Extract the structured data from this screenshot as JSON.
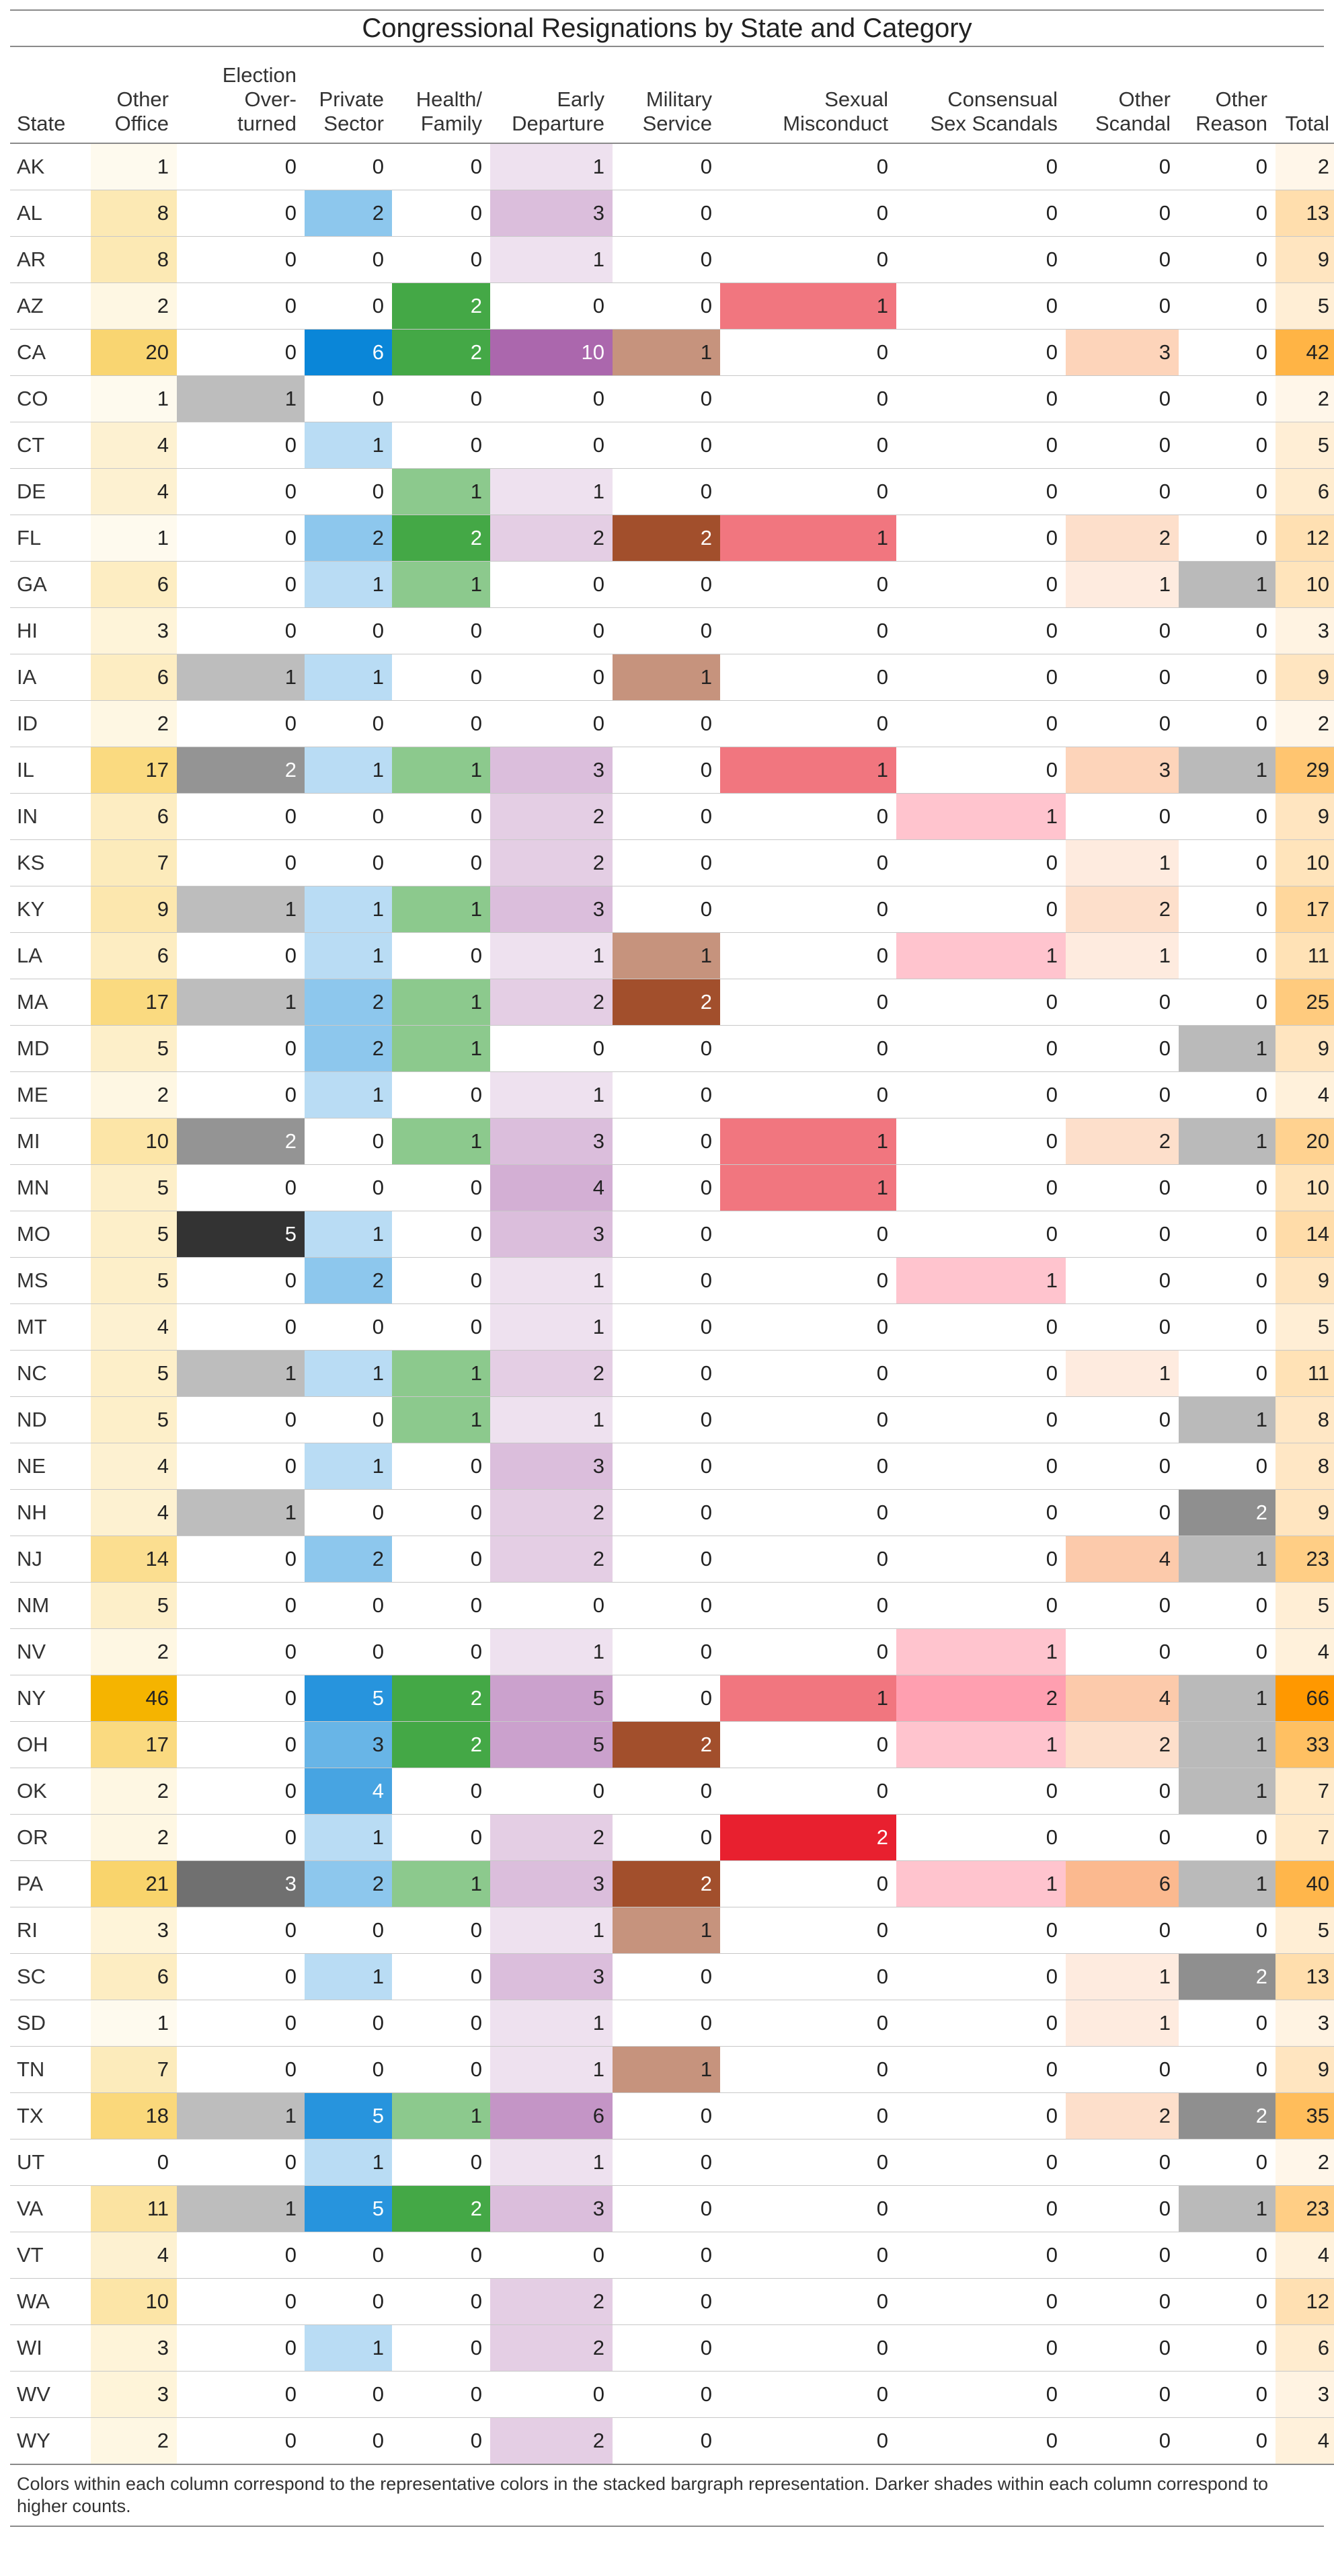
{
  "chart_data": {
    "type": "table",
    "title": "Congressional Resignations by State and Category",
    "columns": [
      {
        "key": "state",
        "label": "State"
      },
      {
        "key": "other_office",
        "label": "Other\nOffice",
        "color": "#f5b400"
      },
      {
        "key": "election_overturned",
        "label": "Election\nOver-\nturned",
        "color": "#333333"
      },
      {
        "key": "private_sector",
        "label": "Private\nSector",
        "color": "#0a86d8"
      },
      {
        "key": "health_family",
        "label": "Health/\nFamily",
        "color": "#44a846"
      },
      {
        "key": "early_departure",
        "label": "Early\nDeparture",
        "color": "#ab67ad"
      },
      {
        "key": "military_service",
        "label": "Military\nService",
        "color": "#a24f2c"
      },
      {
        "key": "sexual_misconduct",
        "label": "Sexual\nMisconduct",
        "color": "#e8202f"
      },
      {
        "key": "consensual_sex_scandals",
        "label": "Consensual\nSex Scandals",
        "color": "#ff9fb0"
      },
      {
        "key": "other_scandal",
        "label": "Other\nScandal",
        "color": "#fbb98f"
      },
      {
        "key": "other_reason",
        "label": "Other\nReason",
        "color": "#8f8f8f"
      },
      {
        "key": "total",
        "label": "Total",
        "color": "#ff9800"
      }
    ],
    "rows": [
      [
        "AK",
        1,
        0,
        0,
        0,
        1,
        0,
        0,
        0,
        0,
        0,
        2
      ],
      [
        "AL",
        8,
        0,
        2,
        0,
        3,
        0,
        0,
        0,
        0,
        0,
        13
      ],
      [
        "AR",
        8,
        0,
        0,
        0,
        1,
        0,
        0,
        0,
        0,
        0,
        9
      ],
      [
        "AZ",
        2,
        0,
        0,
        2,
        0,
        0,
        1,
        0,
        0,
        0,
        5
      ],
      [
        "CA",
        20,
        0,
        6,
        2,
        10,
        1,
        0,
        0,
        3,
        0,
        42
      ],
      [
        "CO",
        1,
        1,
        0,
        0,
        0,
        0,
        0,
        0,
        0,
        0,
        2
      ],
      [
        "CT",
        4,
        0,
        1,
        0,
        0,
        0,
        0,
        0,
        0,
        0,
        5
      ],
      [
        "DE",
        4,
        0,
        0,
        1,
        1,
        0,
        0,
        0,
        0,
        0,
        6
      ],
      [
        "FL",
        1,
        0,
        2,
        2,
        2,
        2,
        1,
        0,
        2,
        0,
        12
      ],
      [
        "GA",
        6,
        0,
        1,
        1,
        0,
        0,
        0,
        0,
        1,
        1,
        10
      ],
      [
        "HI",
        3,
        0,
        0,
        0,
        0,
        0,
        0,
        0,
        0,
        0,
        3
      ],
      [
        "IA",
        6,
        1,
        1,
        0,
        0,
        1,
        0,
        0,
        0,
        0,
        9
      ],
      [
        "ID",
        2,
        0,
        0,
        0,
        0,
        0,
        0,
        0,
        0,
        0,
        2
      ],
      [
        "IL",
        17,
        2,
        1,
        1,
        3,
        0,
        1,
        0,
        3,
        1,
        29
      ],
      [
        "IN",
        6,
        0,
        0,
        0,
        2,
        0,
        0,
        1,
        0,
        0,
        9
      ],
      [
        "KS",
        7,
        0,
        0,
        0,
        2,
        0,
        0,
        0,
        1,
        0,
        10
      ],
      [
        "KY",
        9,
        1,
        1,
        1,
        3,
        0,
        0,
        0,
        2,
        0,
        17
      ],
      [
        "LA",
        6,
        0,
        1,
        0,
        1,
        1,
        0,
        1,
        1,
        0,
        11
      ],
      [
        "MA",
        17,
        1,
        2,
        1,
        2,
        2,
        0,
        0,
        0,
        0,
        25
      ],
      [
        "MD",
        5,
        0,
        2,
        1,
        0,
        0,
        0,
        0,
        0,
        1,
        9
      ],
      [
        "ME",
        2,
        0,
        1,
        0,
        1,
        0,
        0,
        0,
        0,
        0,
        4
      ],
      [
        "MI",
        10,
        2,
        0,
        1,
        3,
        0,
        1,
        0,
        2,
        1,
        20
      ],
      [
        "MN",
        5,
        0,
        0,
        0,
        4,
        0,
        1,
        0,
        0,
        0,
        10
      ],
      [
        "MO",
        5,
        5,
        1,
        0,
        3,
        0,
        0,
        0,
        0,
        0,
        14
      ],
      [
        "MS",
        5,
        0,
        2,
        0,
        1,
        0,
        0,
        1,
        0,
        0,
        9
      ],
      [
        "MT",
        4,
        0,
        0,
        0,
        1,
        0,
        0,
        0,
        0,
        0,
        5
      ],
      [
        "NC",
        5,
        1,
        1,
        1,
        2,
        0,
        0,
        0,
        1,
        0,
        11
      ],
      [
        "ND",
        5,
        0,
        0,
        1,
        1,
        0,
        0,
        0,
        0,
        1,
        8
      ],
      [
        "NE",
        4,
        0,
        1,
        0,
        3,
        0,
        0,
        0,
        0,
        0,
        8
      ],
      [
        "NH",
        4,
        1,
        0,
        0,
        2,
        0,
        0,
        0,
        0,
        2,
        9
      ],
      [
        "NJ",
        14,
        0,
        2,
        0,
        2,
        0,
        0,
        0,
        4,
        1,
        23
      ],
      [
        "NM",
        5,
        0,
        0,
        0,
        0,
        0,
        0,
        0,
        0,
        0,
        5
      ],
      [
        "NV",
        2,
        0,
        0,
        0,
        1,
        0,
        0,
        1,
        0,
        0,
        4
      ],
      [
        "NY",
        46,
        0,
        5,
        2,
        5,
        0,
        1,
        2,
        4,
        1,
        66
      ],
      [
        "OH",
        17,
        0,
        3,
        2,
        5,
        2,
        0,
        1,
        2,
        1,
        33
      ],
      [
        "OK",
        2,
        0,
        4,
        0,
        0,
        0,
        0,
        0,
        0,
        1,
        7
      ],
      [
        "OR",
        2,
        0,
        1,
        0,
        2,
        0,
        2,
        0,
        0,
        0,
        7
      ],
      [
        "PA",
        21,
        3,
        2,
        1,
        3,
        2,
        0,
        1,
        6,
        1,
        40
      ],
      [
        "RI",
        3,
        0,
        0,
        0,
        1,
        1,
        0,
        0,
        0,
        0,
        5
      ],
      [
        "SC",
        6,
        0,
        1,
        0,
        3,
        0,
        0,
        0,
        1,
        2,
        13
      ],
      [
        "SD",
        1,
        0,
        0,
        0,
        1,
        0,
        0,
        0,
        1,
        0,
        3
      ],
      [
        "TN",
        7,
        0,
        0,
        0,
        1,
        1,
        0,
        0,
        0,
        0,
        9
      ],
      [
        "TX",
        18,
        1,
        5,
        1,
        6,
        0,
        0,
        0,
        2,
        2,
        35
      ],
      [
        "UT",
        0,
        0,
        1,
        0,
        1,
        0,
        0,
        0,
        0,
        0,
        2
      ],
      [
        "VA",
        11,
        1,
        5,
        2,
        3,
        0,
        0,
        0,
        0,
        1,
        23
      ],
      [
        "VT",
        4,
        0,
        0,
        0,
        0,
        0,
        0,
        0,
        0,
        0,
        4
      ],
      [
        "WA",
        10,
        0,
        0,
        0,
        2,
        0,
        0,
        0,
        0,
        0,
        12
      ],
      [
        "WI",
        3,
        0,
        1,
        0,
        2,
        0,
        0,
        0,
        0,
        0,
        6
      ],
      [
        "WV",
        3,
        0,
        0,
        0,
        0,
        0,
        0,
        0,
        0,
        0,
        3
      ],
      [
        "WY",
        2,
        0,
        0,
        0,
        2,
        0,
        0,
        0,
        0,
        0,
        4
      ]
    ],
    "footnote": "Colors within each column correspond to the representative colors in the stacked bargraph representation. Darker shades within each column correspond to higher counts."
  }
}
